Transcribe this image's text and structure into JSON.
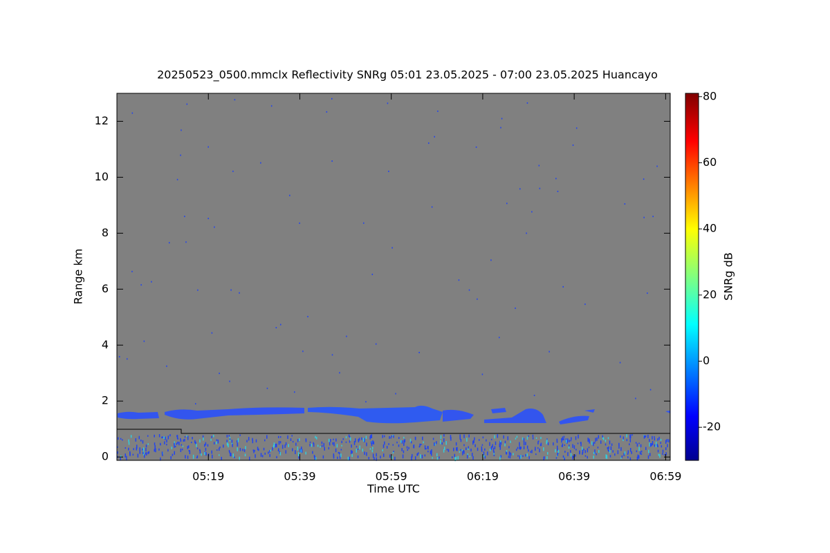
{
  "chart_data": {
    "type": "heatmap",
    "title": "20250523_0500.mmclx Reflectivity SNRg   05:01 23.05.2025 - 07:00 23.05.2025 Huancayo",
    "xlabel": "Time UTC",
    "ylabel": "Range km",
    "colorbar_label": "SNRg dB",
    "xlim": [
      299,
      420
    ],
    "xticks": [
      {
        "value": 319,
        "label": "05:19"
      },
      {
        "value": 339,
        "label": "05:39"
      },
      {
        "value": 359,
        "label": "05:59"
      },
      {
        "value": 379,
        "label": "06:19"
      },
      {
        "value": 399,
        "label": "06:39"
      },
      {
        "value": 419,
        "label": "06:59"
      }
    ],
    "ylim": [
      -0.12,
      13
    ],
    "yticks": [
      0,
      2,
      4,
      6,
      8,
      10,
      12
    ],
    "clim": [
      -30,
      81
    ],
    "cticks": [
      -20,
      0,
      20,
      40,
      60,
      80
    ]
  }
}
